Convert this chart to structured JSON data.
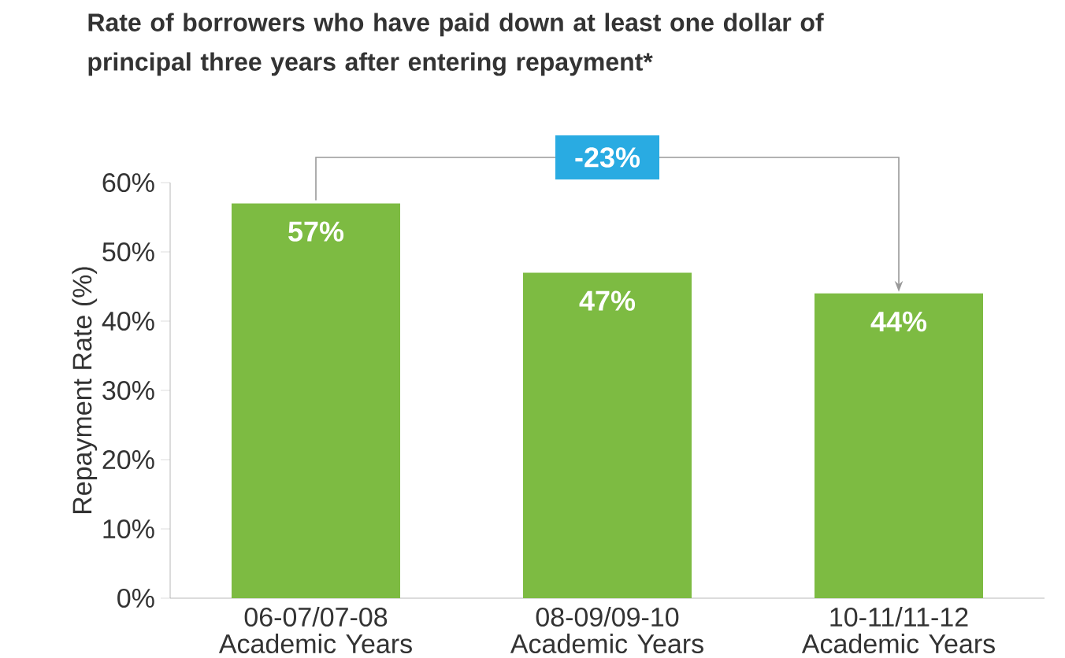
{
  "chart_data": {
    "type": "bar",
    "title": "Rate of borrowers who have paid down at least one dollar of principal three years after entering repayment*",
    "ylabel": "Repayment Rate (%)",
    "categories": [
      "06-07/07-08 Academic Years",
      "08-09/09-10 Academic Years",
      "10-11/11-12 Academic Years"
    ],
    "values": [
      57,
      47,
      44
    ],
    "value_labels": [
      "57%",
      "47%",
      "44%"
    ],
    "color": "#7dbb42",
    "ylim": [
      0,
      60
    ],
    "yticks": [
      {
        "value": 0,
        "label": "0%"
      },
      {
        "value": 10,
        "label": "10%"
      },
      {
        "value": 20,
        "label": "20%"
      },
      {
        "value": 30,
        "label": "30%"
      },
      {
        "value": 40,
        "label": "40%"
      },
      {
        "value": 50,
        "label": "50%"
      },
      {
        "value": 60,
        "label": "60%"
      }
    ],
    "annotations": [
      "-23%"
    ]
  }
}
